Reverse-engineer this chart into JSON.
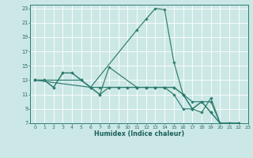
{
  "bg_color": "#cce8e6",
  "grid_color": "#ffffff",
  "line_color": "#2d7d6e",
  "xlabel": "Humidex (Indice chaleur)",
  "xlim": [
    -0.5,
    23
  ],
  "ylim": [
    7,
    23.5
  ],
  "xticks": [
    0,
    1,
    2,
    3,
    4,
    5,
    6,
    7,
    8,
    9,
    10,
    11,
    12,
    13,
    14,
    15,
    16,
    17,
    18,
    19,
    20,
    21,
    22,
    23
  ],
  "yticks": [
    7,
    9,
    11,
    13,
    15,
    17,
    19,
    21,
    23
  ],
  "series": [
    {
      "x": [
        0,
        1,
        2,
        3,
        4,
        5,
        6,
        7,
        8,
        9,
        10,
        11,
        12,
        13,
        14,
        15,
        16,
        17,
        18,
        19,
        20,
        21,
        22,
        23
      ],
      "y": [
        13,
        13,
        12,
        14,
        14,
        13,
        12,
        12,
        12,
        12,
        12,
        12,
        12,
        12,
        12,
        12,
        11,
        10,
        10,
        10,
        7,
        7,
        7,
        6.5
      ]
    },
    {
      "x": [
        0,
        1,
        2,
        3,
        4,
        5,
        6,
        7,
        8,
        9,
        10,
        11,
        12,
        13,
        14,
        15,
        16,
        17,
        18,
        19,
        20,
        21,
        22,
        23
      ],
      "y": [
        13,
        13,
        12,
        14,
        14,
        13,
        12,
        11,
        12,
        12,
        12,
        12,
        12,
        12,
        12,
        11,
        9,
        9,
        8.5,
        10.5,
        7,
        7,
        7,
        6.5
      ]
    },
    {
      "x": [
        0,
        5,
        6,
        11,
        12,
        13,
        14,
        15,
        16,
        17,
        18,
        19,
        20,
        21,
        22,
        23
      ],
      "y": [
        13,
        13,
        12,
        20,
        21.5,
        23,
        22.8,
        15.5,
        11,
        9,
        10,
        8.5,
        7,
        7,
        7,
        6.5
      ]
    },
    {
      "x": [
        0,
        6,
        7,
        8,
        11,
        12,
        13,
        14,
        15,
        16,
        17,
        18,
        19,
        20,
        21,
        22,
        23
      ],
      "y": [
        13,
        12,
        11,
        14.8,
        12,
        12,
        12,
        12,
        12,
        11,
        9,
        10,
        8.5,
        7,
        7,
        7,
        6.5
      ]
    }
  ]
}
